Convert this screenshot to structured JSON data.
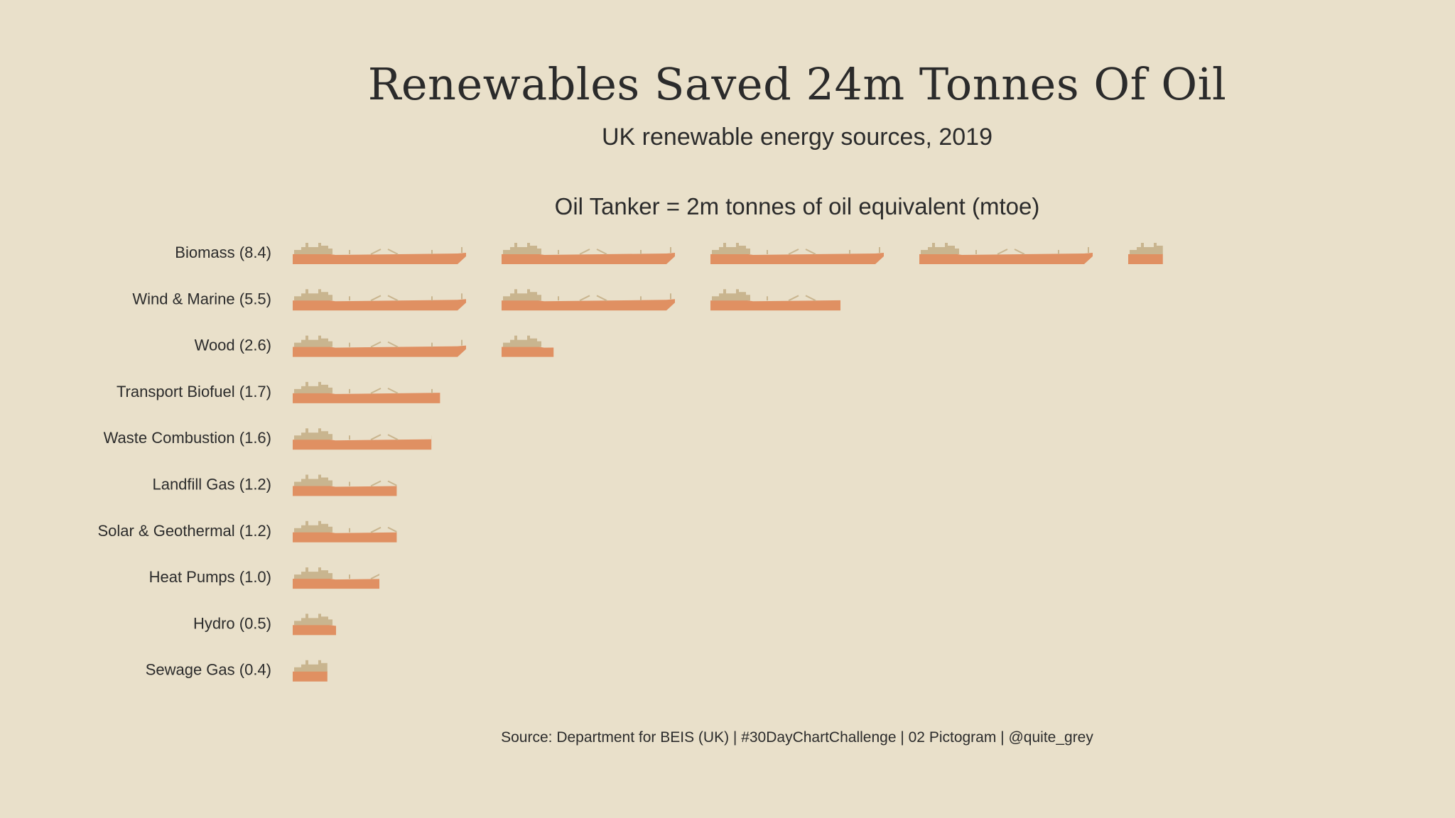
{
  "title": "Renewables Saved 24m Tonnes Of Oil",
  "subtitle": "UK renewable energy sources, 2019",
  "legend": "Oil Tanker = 2m tonnes of oil equivalent (mtoe)",
  "caption": "Source: Department for BEIS (UK)  |  #30DayChartChallenge  |  02 Pictogram  |  @quite_grey",
  "colors": {
    "background": "#e9e0ca",
    "hull": "#e09062",
    "superstructure": "#c9b58f",
    "text": "#2b2b2b"
  },
  "icon": "oil-tanker-icon",
  "chart_data": {
    "type": "pictogram",
    "unit": "mtoe",
    "unit_per_icon": 2,
    "categories": [
      "Biomass (8.4)",
      "Wind & Marine (5.5)",
      "Wood (2.6)",
      "Transport Biofuel (1.7)",
      "Waste Combustion (1.6)",
      "Landfill Gas (1.2)",
      "Solar & Geothermal (1.2)",
      "Heat Pumps (1.0)",
      "Hydro (0.5)",
      "Sewage Gas (0.4)"
    ],
    "values": [
      8.4,
      5.5,
      2.6,
      1.7,
      1.6,
      1.2,
      1.2,
      1.0,
      0.5,
      0.4
    ]
  }
}
